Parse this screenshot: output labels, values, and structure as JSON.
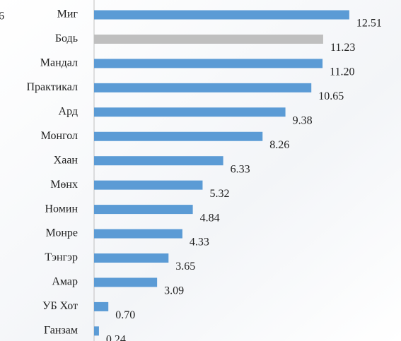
{
  "chart_data": {
    "type": "bar",
    "orientation": "horizontal",
    "annotation": "6",
    "categories": [
      "Миг",
      "Бодь",
      "Мандал",
      "Практикал",
      "Ард",
      "Монгол",
      "Хаан",
      "Мөнх",
      "Номин",
      "Монре",
      "Тэнгэр",
      "Амар",
      "УБ Хот",
      "Ганзам"
    ],
    "values": [
      12.51,
      11.23,
      11.2,
      10.65,
      9.38,
      8.26,
      6.33,
      5.32,
      4.84,
      4.33,
      3.65,
      3.09,
      0.7,
      0.24
    ],
    "value_labels": [
      "12.51",
      "11.23",
      "11.20",
      "10.65",
      "9.38",
      "8.26",
      "6.33",
      "5.32",
      "4.84",
      "4.33",
      "3.65",
      "3.09",
      "0.70",
      "0.24"
    ],
    "colors": [
      "#5b9bd5",
      "#bfbfbf",
      "#5b9bd5",
      "#5b9bd5",
      "#5b9bd5",
      "#5b9bd5",
      "#5b9bd5",
      "#5b9bd5",
      "#5b9bd5",
      "#5b9bd5",
      "#5b9bd5",
      "#5b9bd5",
      "#5b9bd5",
      "#5b9bd5"
    ],
    "xlim": [
      0,
      13
    ]
  }
}
